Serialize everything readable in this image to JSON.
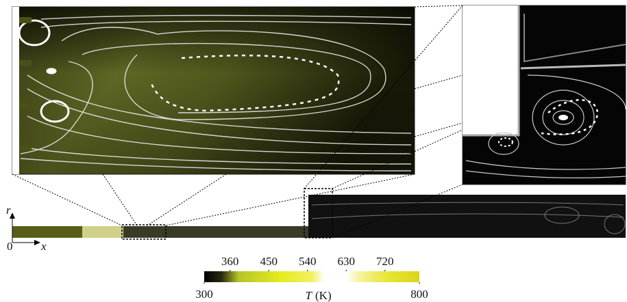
{
  "axes": {
    "r": "r",
    "origin": "0",
    "x": "x"
  },
  "colorbar": {
    "label": "T",
    "unit": "(K)",
    "lim": [
      300,
      800
    ],
    "top_ticks": [
      360,
      450,
      540,
      630,
      720
    ],
    "bottom_ticks": [
      300,
      800
    ]
  }
}
